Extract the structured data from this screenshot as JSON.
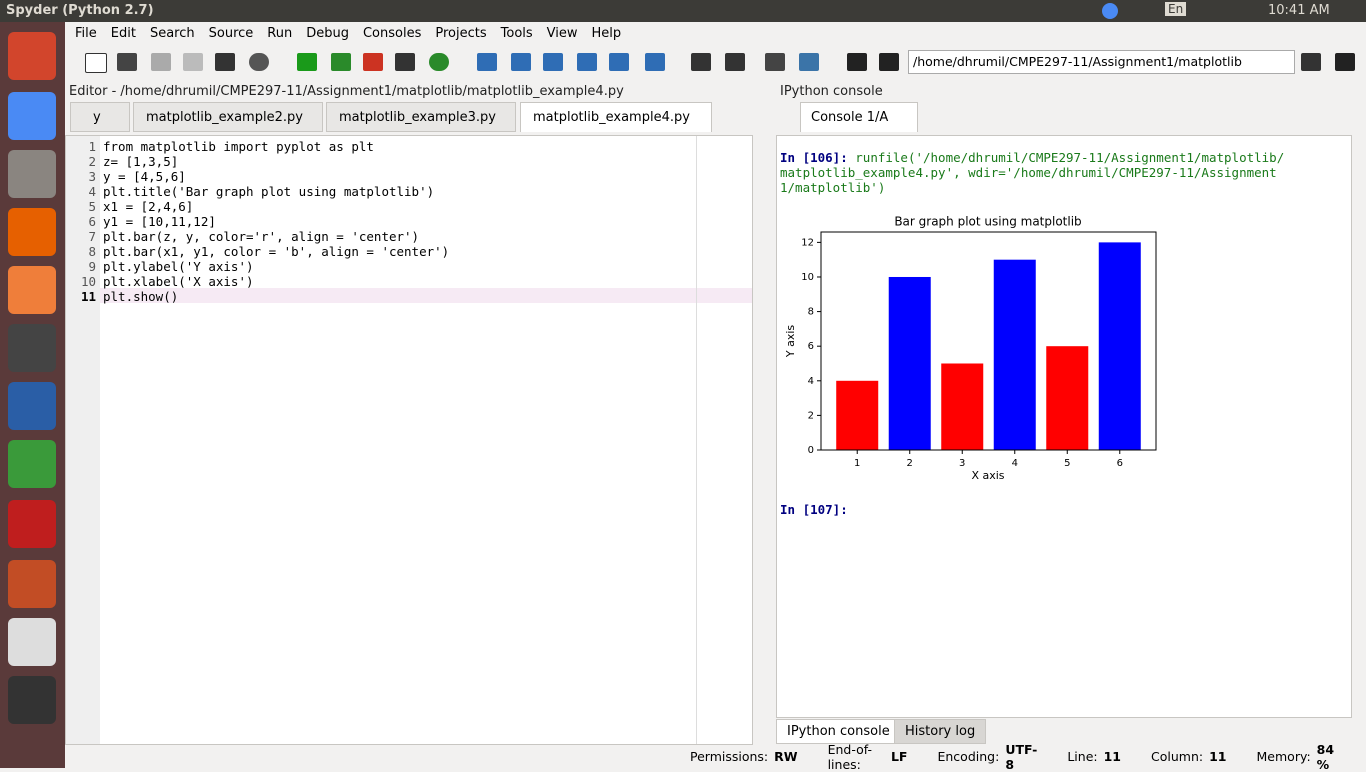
{
  "window": {
    "title": "Spyder (Python 2.7)",
    "lang": "En",
    "clock": "10:41 AM"
  },
  "menu": [
    "File",
    "Edit",
    "Search",
    "Source",
    "Run",
    "Debug",
    "Consoles",
    "Projects",
    "Tools",
    "View",
    "Help"
  ],
  "path_box": "/home/dhrumil/CMPE297-11/Assignment1/matplotlib",
  "editor": {
    "title": "Editor - /home/dhrumil/CMPE297-11/Assignment1/matplotlib/matplotlib_example4.py",
    "tabs": [
      "y",
      "matplotlib_example2.py",
      "matplotlib_example3.py",
      "matplotlib_example4.py"
    ],
    "line_numbers": [
      1,
      2,
      3,
      4,
      5,
      6,
      7,
      8,
      9,
      10,
      11
    ],
    "lines": [
      "from matplotlib import pyplot as plt",
      "z= [1,3,5]",
      "y = [4,5,6]",
      "plt.title('Bar graph plot using matplotlib')",
      "x1 = [2,4,6]",
      "y1 = [10,11,12]",
      "plt.bar(z, y, color='r', align = 'center')",
      "plt.bar(x1, y1, color = 'b', align = 'center')",
      "plt.ylabel('Y axis')",
      "plt.xlabel('X axis')",
      "plt.show()"
    ]
  },
  "console": {
    "title": "IPython console",
    "tab": "Console 1/A",
    "prompt1": "In [106]:",
    "command": "runfile('/home/dhrumil/CMPE297-11/Assignment1/matplotlib/matplotlib_example4.py', wdir='/home/dhrumil/CMPE297-11/Assignment1/matplotlib')",
    "prompt2": "In [107]:",
    "bottom_tabs": [
      "IPython console",
      "History log"
    ]
  },
  "chart_data": {
    "type": "bar",
    "title": "Bar graph plot using matplotlib",
    "x_label": "X axis",
    "y_label": "Y axis",
    "series": [
      {
        "color": "#ff0000",
        "x": [
          1,
          3,
          5
        ],
        "values": [
          4,
          5,
          6
        ]
      },
      {
        "color": "#0000ff",
        "x": [
          2,
          4,
          6
        ],
        "values": [
          10,
          11,
          12
        ]
      }
    ],
    "xlim": [
      0.31,
      6.69
    ],
    "xticks": [
      1,
      2,
      3,
      4,
      5,
      6
    ],
    "ylim": [
      0,
      12.6
    ],
    "yticks": [
      0,
      2,
      4,
      6,
      8,
      10,
      12
    ]
  },
  "status": [
    {
      "label": "Permissions:",
      "value": "RW"
    },
    {
      "label": "End-of-lines:",
      "value": "LF"
    },
    {
      "label": "Encoding:",
      "value": "UTF-8"
    },
    {
      "label": "Line:",
      "value": "11"
    },
    {
      "label": "Column:",
      "value": "11"
    },
    {
      "label": "Memory:",
      "value": "84 %"
    }
  ]
}
